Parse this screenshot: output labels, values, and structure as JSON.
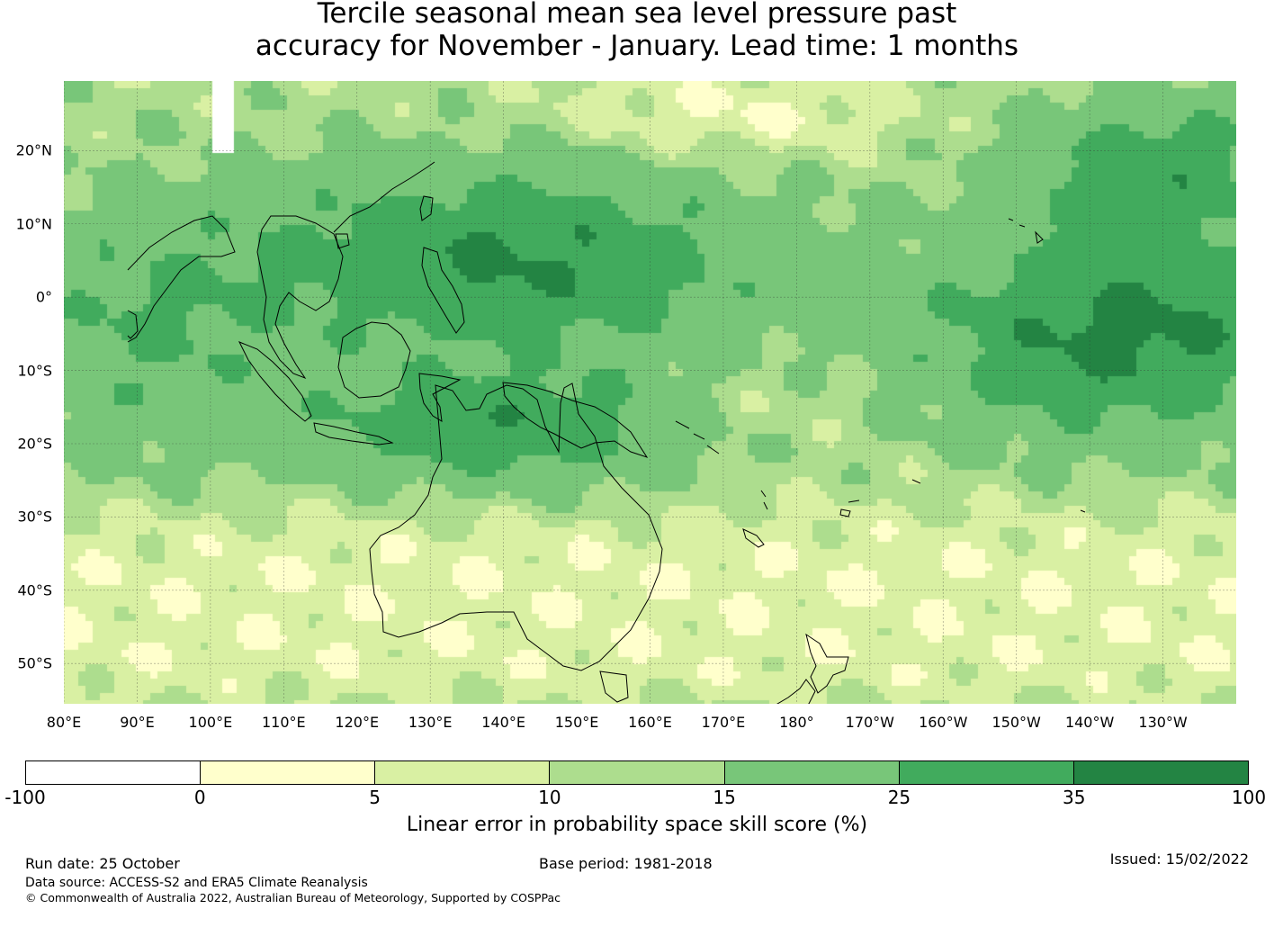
{
  "title_line1": "Tercile seasonal mean sea level pressure past",
  "title_line2": "accuracy for November - January. Lead time: 1 months",
  "map": {
    "region": "Australia and western/central Pacific",
    "lon_labels": [
      "80°E",
      "90°E",
      "100°E",
      "110°E",
      "120°E",
      "130°E",
      "140°E",
      "150°E",
      "160°E",
      "170°E",
      "180°",
      "170°W",
      "160°W",
      "150°W",
      "140°W",
      "130°W"
    ],
    "lat_labels": [
      "20°N",
      "10°N",
      "0°",
      "10°S",
      "20°S",
      "30°S",
      "40°S",
      "50°S"
    ],
    "lon_values": [
      80,
      90,
      100,
      110,
      120,
      130,
      140,
      150,
      160,
      170,
      180,
      190,
      200,
      210,
      220,
      230
    ],
    "lat_values": [
      20,
      10,
      0,
      -10,
      -20,
      -30,
      -40,
      -50
    ],
    "lon_range": [
      80,
      240
    ],
    "lat_range": [
      -55.5,
      29.5
    ],
    "gridlines": true
  },
  "colorbar": {
    "ticks": [
      "-100",
      "0",
      "5",
      "10",
      "15",
      "25",
      "35",
      "100"
    ],
    "colors": [
      "#ffffff",
      "#ffffcc",
      "#d9f0a3",
      "#addd8e",
      "#78c679",
      "#41ab5d",
      "#238443"
    ],
    "label": "Linear error in probability space skill score (%)"
  },
  "footer": {
    "run_date": "Run date: 25 October",
    "base_period": "Base period: 1981-2018",
    "issued": "Issued: 15/02/2022",
    "data_source": "Data source: ACCESS-S2 and ERA5 Climate Reanalysis",
    "copyright": "© Commonwealth of Australia 2022, Australian Bureau of Meteorology, Supported by COSPPac"
  }
}
